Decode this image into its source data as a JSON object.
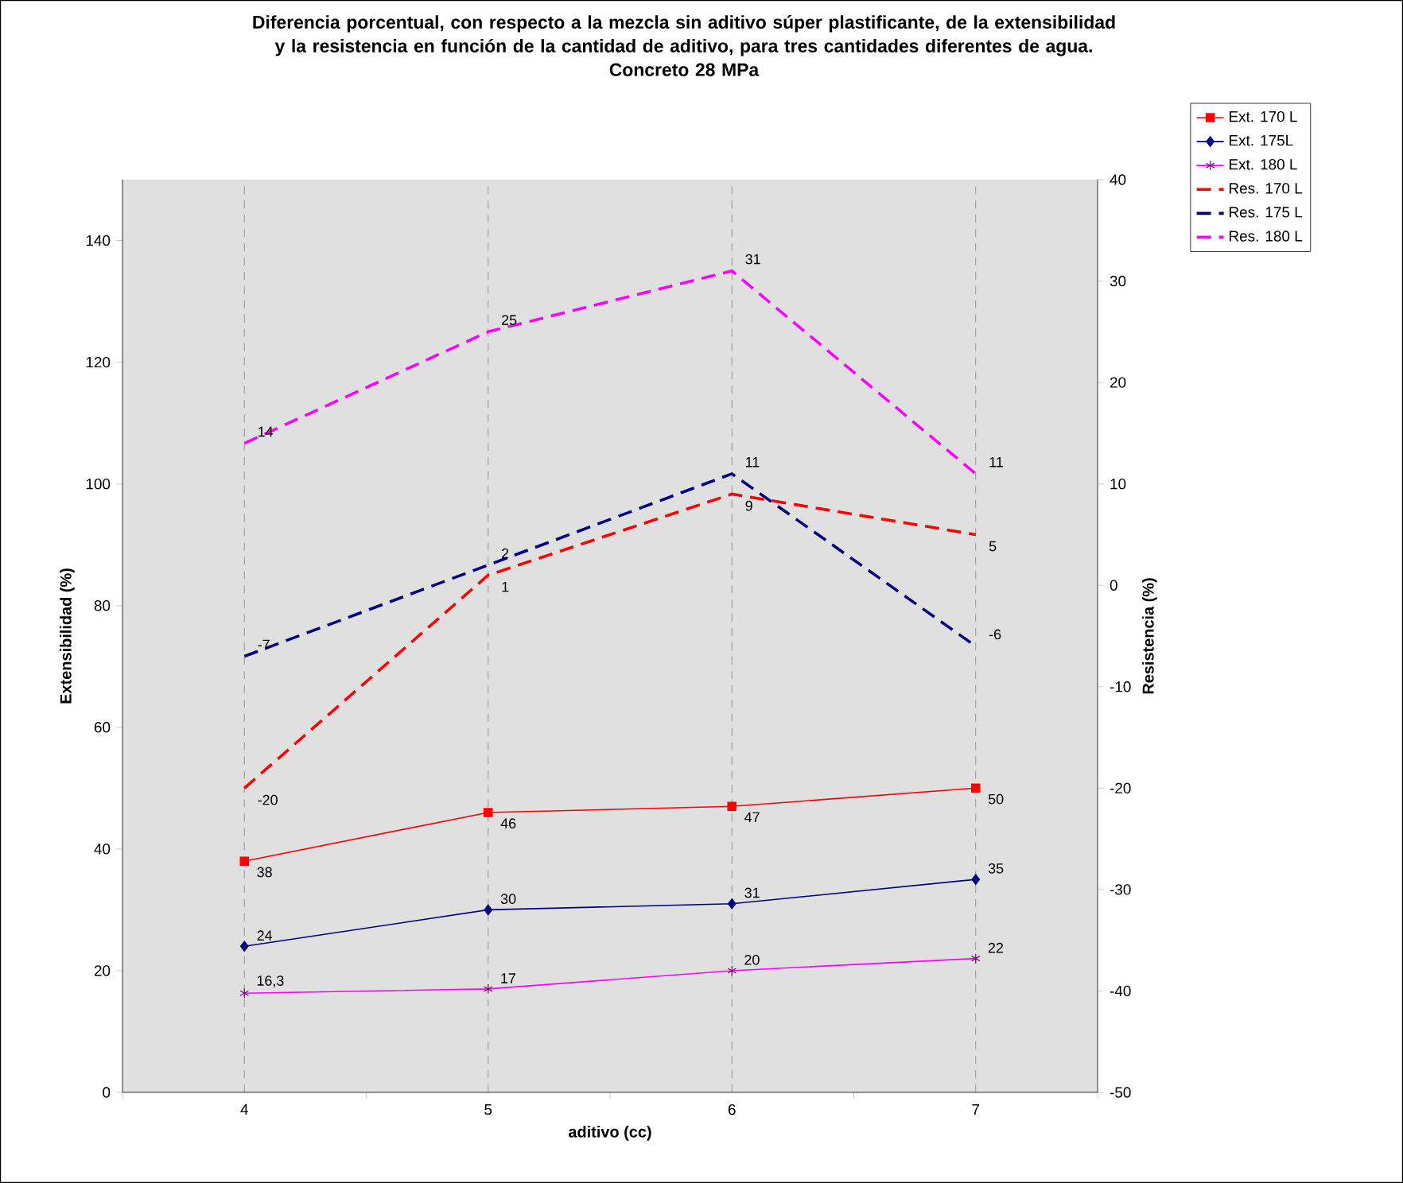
{
  "chart_data": {
    "type": "line",
    "title": "Diferencia porcentual, con respecto a la mezcla sin aditivo súper plastificante, de la extensibilidad y la resistencia en función de la cantidad de aditivo, para tres cantidades diferentes de agua.",
    "subtitle": "Concreto 28 MPa",
    "xlabel": "aditivo (cc)",
    "ylabel": "Extensibilidad (%)",
    "y2label": "Resistencia (%)",
    "categories": [
      "4",
      "5",
      "6",
      "7"
    ],
    "series": [
      {
        "name": "Ext. 170 L",
        "color": "#ff0000",
        "marker": "square",
        "line_style": "solid",
        "values": [
          38,
          46,
          47,
          50
        ],
        "value_labels": [
          "38",
          "46",
          "47",
          "50"
        ]
      },
      {
        "name": "Ext. 175L",
        "color": "#000080",
        "marker": "diamond",
        "line_style": "solid",
        "values": [
          24,
          30,
          31,
          35
        ],
        "value_labels": [
          "24",
          "30",
          "31",
          "35"
        ]
      },
      {
        "name": "Ext. 180 L",
        "color": "#ff00ff",
        "marker": "cross",
        "line_style": "solid",
        "values": [
          16.3,
          17,
          20,
          22
        ],
        "value_labels": [
          "16,3",
          "17",
          "20",
          "22"
        ]
      },
      {
        "name": "Res. 170 L",
        "color": "#ff0000",
        "marker": "none",
        "line_style": "dashed",
        "axis": "y2",
        "values": [
          -20,
          1,
          9,
          5
        ],
        "value_labels": [
          "-20",
          "1",
          "9",
          "5"
        ]
      },
      {
        "name": "Res. 175 L",
        "color": "#000080",
        "marker": "none",
        "line_style": "dashed",
        "axis": "y2",
        "values": [
          -7,
          2,
          11,
          -6
        ],
        "value_labels": [
          "-7",
          "2",
          "11",
          "-6"
        ]
      },
      {
        "name": "Res. 180 L",
        "color": "#ff00ff",
        "marker": "none",
        "line_style": "dashed",
        "axis": "y2",
        "values": [
          14,
          25,
          31,
          11
        ],
        "value_labels": [
          "14",
          "25",
          "31",
          "11"
        ]
      }
    ],
    "ylim": [
      0,
      150
    ],
    "yticks": [
      0,
      20,
      40,
      60,
      80,
      100,
      120,
      140
    ],
    "y2lim": [
      -50,
      40
    ],
    "y2ticks": [
      -50,
      -40,
      -30,
      -20,
      -10,
      0,
      10,
      20,
      30,
      40
    ],
    "grid": "x",
    "legend": "top right"
  }
}
